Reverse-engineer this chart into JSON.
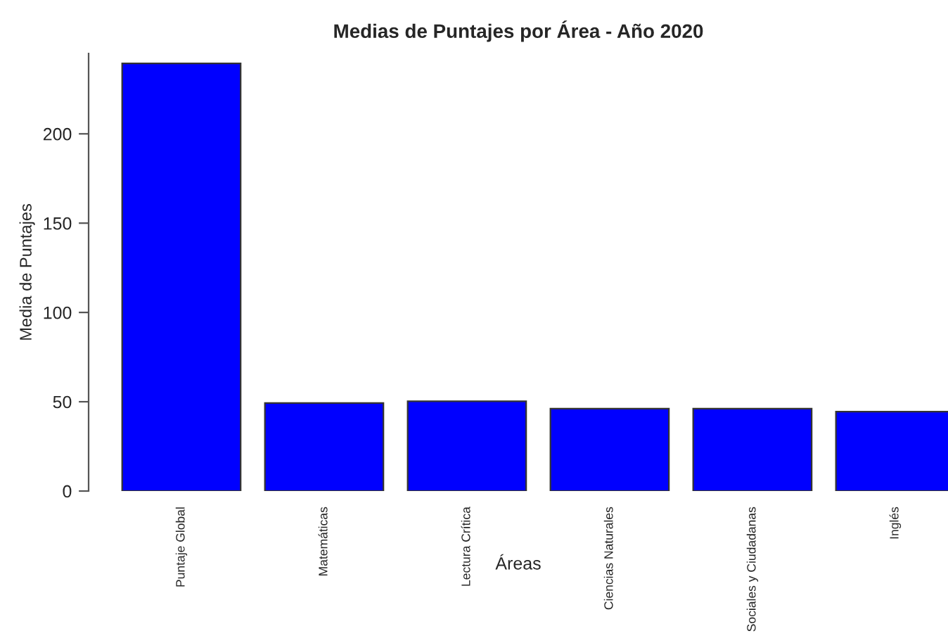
{
  "chart_data": {
    "type": "bar",
    "title": "Medias de Puntajes por Área - Año 2020",
    "xlabel": "Áreas",
    "ylabel": "Media de Puntajes",
    "categories": [
      "Puntaje Global",
      "Matemáticas",
      "Lectura Crítica",
      "Ciencias Naturales",
      "Sociales y Ciudadanas",
      "Inglés"
    ],
    "values": [
      239.4,
      49.3,
      50.3,
      46.1,
      46.1,
      44.5
    ],
    "color": "#0000ff",
    "ylim": [
      0,
      245
    ],
    "yticks": [
      0,
      50,
      100,
      150,
      200
    ],
    "grid": false,
    "legend": false
  }
}
